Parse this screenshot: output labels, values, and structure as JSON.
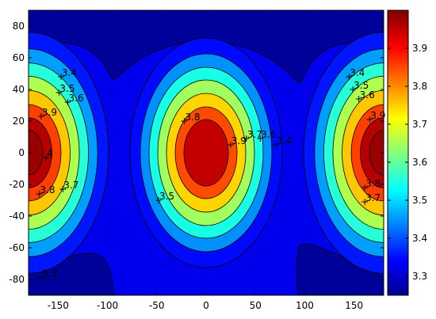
{
  "chart_data": {
    "type": "contour",
    "title": "",
    "xlabel": "",
    "ylabel": "",
    "xlim": [
      -180,
      180
    ],
    "ylim": [
      -90,
      90
    ],
    "xticks": [
      "-150",
      "-100",
      "-50",
      "0",
      "50",
      "100",
      "150"
    ],
    "yticks": [
      "80",
      "60",
      "40",
      "20",
      "0",
      "-20",
      "-40",
      "-60",
      "-80"
    ],
    "colorbar": {
      "range": [
        3.25,
        4.0
      ],
      "ticks": [
        "3.3",
        "3.4",
        "3.5",
        "3.6",
        "3.7",
        "3.8",
        "3.9"
      ],
      "colormap": "jet"
    },
    "levels": [
      3.3,
      3.4,
      3.5,
      3.6,
      3.7,
      3.8,
      3.9
    ],
    "peaks": [
      {
        "lon": 0,
        "lat": 0,
        "value": 3.95
      },
      {
        "lon": -180,
        "lat": 0,
        "value": 4.0
      },
      {
        "lon": 180,
        "lat": 0,
        "value": 4.0
      }
    ],
    "contour_labels": [
      {
        "text": "3.4",
        "lon": -148,
        "lat": 48
      },
      {
        "text": "3.5",
        "lon": -150,
        "lat": 38
      },
      {
        "text": "3.6",
        "lon": -141,
        "lat": 32
      },
      {
        "text": "3.9",
        "lon": -168,
        "lat": 23
      },
      {
        "text": "4",
        "lon": -163,
        "lat": -3
      },
      {
        "text": "3.8",
        "lon": -170,
        "lat": -26
      },
      {
        "text": "3.7",
        "lon": -146,
        "lat": -23
      },
      {
        "text": "3.3",
        "lon": -168,
        "lat": -79
      },
      {
        "text": "3.8",
        "lon": -23,
        "lat": 20
      },
      {
        "text": "3.9",
        "lon": 24,
        "lat": 5
      },
      {
        "text": "3.7",
        "lon": 40,
        "lat": 9
      },
      {
        "text": "3.6",
        "lon": 54,
        "lat": 9
      },
      {
        "text": "3.4",
        "lon": 70,
        "lat": 5
      },
      {
        "text": "3.5",
        "lon": -49,
        "lat": -30
      },
      {
        "text": "3.4",
        "lon": 144,
        "lat": 48
      },
      {
        "text": "3.5",
        "lon": 148,
        "lat": 40
      },
      {
        "text": "3.6",
        "lon": 154,
        "lat": 34
      },
      {
        "text": "3.9",
        "lon": 165,
        "lat": 21
      },
      {
        "text": "3.8",
        "lon": 160,
        "lat": -22
      },
      {
        "text": "3.7",
        "lon": 160,
        "lat": -31
      }
    ]
  }
}
